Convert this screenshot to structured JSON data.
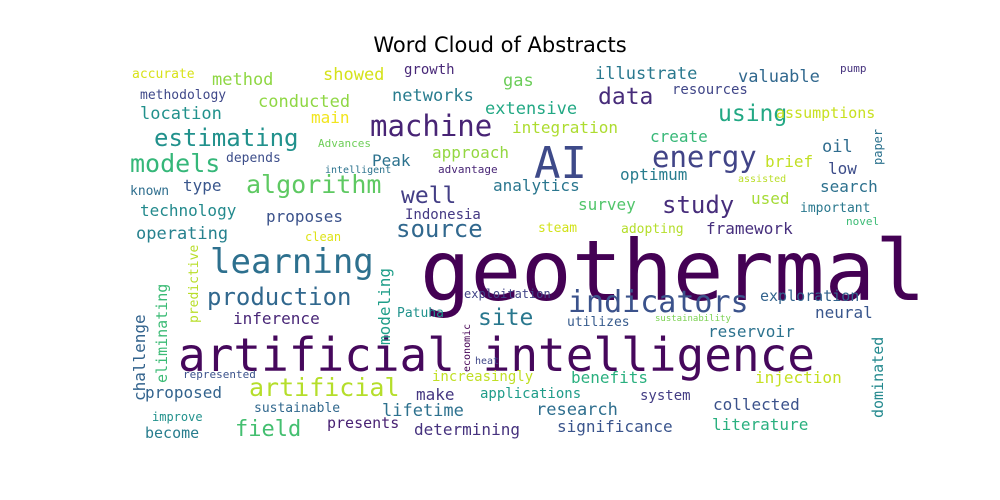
{
  "chart_data": {
    "type": "wordcloud",
    "title": "Word Cloud of Abstracts",
    "words": [
      {
        "text": "geothermal",
        "weight": 100,
        "color": "#440154",
        "vertical": false
      },
      {
        "text": "artificial intelligence",
        "weight": 72,
        "color": "#46085c",
        "vertical": false
      },
      {
        "text": "AI",
        "weight": 52,
        "color": "#3e4a89",
        "vertical": false
      },
      {
        "text": "learning",
        "weight": 38,
        "color": "#2d708e",
        "vertical": false
      },
      {
        "text": "indicators",
        "weight": 36,
        "color": "#3b528b",
        "vertical": false
      },
      {
        "text": "machine",
        "weight": 33,
        "color": "#482475",
        "vertical": false
      },
      {
        "text": "energy",
        "weight": 33,
        "color": "#414487",
        "vertical": false
      },
      {
        "text": "algorithm",
        "weight": 30,
        "color": "#5ec962",
        "vertical": false
      },
      {
        "text": "artificial",
        "weight": 30,
        "color": "#b5de2b",
        "vertical": false
      },
      {
        "text": "models",
        "weight": 28,
        "color": "#35b779",
        "vertical": false
      },
      {
        "text": "estimating",
        "weight": 27,
        "color": "#21918c",
        "vertical": false
      },
      {
        "text": "production",
        "weight": 26,
        "color": "#31688e",
        "vertical": false
      },
      {
        "text": "study",
        "weight": 26,
        "color": "#472d7b",
        "vertical": false
      },
      {
        "text": "source",
        "weight": 26,
        "color": "#31688e",
        "vertical": false
      },
      {
        "text": "site",
        "weight": 26,
        "color": "#2a788e",
        "vertical": false
      },
      {
        "text": "well",
        "weight": 25,
        "color": "#433e85",
        "vertical": false
      },
      {
        "text": "data",
        "weight": 25,
        "color": "#472c7a",
        "vertical": false
      },
      {
        "text": "using",
        "weight": 25,
        "color": "#22a884",
        "vertical": false
      },
      {
        "text": "field",
        "weight": 24,
        "color": "#44bf70",
        "vertical": false
      },
      {
        "text": "dominated",
        "weight": 11,
        "color": "#23898e",
        "vertical": true
      },
      {
        "text": "challenge",
        "weight": 15,
        "color": "#33638d",
        "vertical": true
      },
      {
        "text": "eliminating",
        "weight": 14,
        "color": "#3bbb75",
        "vertical": true
      },
      {
        "text": "modeling",
        "weight": 15,
        "color": "#1f9e89",
        "vertical": true
      },
      {
        "text": "predictive",
        "weight": 10,
        "color": "#b8de29",
        "vertical": true
      },
      {
        "text": "paper",
        "weight": 9,
        "color": "#2c728e",
        "vertical": true
      },
      {
        "text": "economic",
        "weight": 7,
        "color": "#440154",
        "vertical": true
      },
      {
        "text": "accurate",
        "weight": 10,
        "color": "#d8e219",
        "vertical": false
      },
      {
        "text": "method",
        "weight": 14,
        "color": "#8fd744",
        "vertical": false
      },
      {
        "text": "showed",
        "weight": 14,
        "color": "#d5e21a",
        "vertical": false
      },
      {
        "text": "growth",
        "weight": 11,
        "color": "#482878",
        "vertical": false
      },
      {
        "text": "gas",
        "weight": 14,
        "color": "#6ccd5a",
        "vertical": false
      },
      {
        "text": "illustrate",
        "weight": 15,
        "color": "#2a788e",
        "vertical": false
      },
      {
        "text": "valuable",
        "weight": 14,
        "color": "#31688e",
        "vertical": false
      },
      {
        "text": "pump",
        "weight": 9,
        "color": "#46337e",
        "vertical": false
      },
      {
        "text": "methodology",
        "weight": 10,
        "color": "#3f4889",
        "vertical": false
      },
      {
        "text": "conducted",
        "weight": 15,
        "color": "#8fd744",
        "vertical": false
      },
      {
        "text": "networks",
        "weight": 15,
        "color": "#287c8e",
        "vertical": false
      },
      {
        "text": "resources",
        "weight": 12,
        "color": "#404688",
        "vertical": false
      },
      {
        "text": "location",
        "weight": 15,
        "color": "#21918c",
        "vertical": false
      },
      {
        "text": "main",
        "weight": 13,
        "color": "#f1e51d",
        "vertical": false
      },
      {
        "text": "extensive",
        "weight": 15,
        "color": "#22a884",
        "vertical": false
      },
      {
        "text": "assumptions",
        "weight": 12,
        "color": "#c8e020",
        "vertical": false
      },
      {
        "text": "integration",
        "weight": 14,
        "color": "#addc30",
        "vertical": false
      },
      {
        "text": "create",
        "weight": 14,
        "color": "#37b878",
        "vertical": false
      },
      {
        "text": "Advances",
        "weight": 9,
        "color": "#6ece58",
        "vertical": false
      },
      {
        "text": "approach",
        "weight": 14,
        "color": "#93d741",
        "vertical": false
      },
      {
        "text": "oil",
        "weight": 15,
        "color": "#2f6c8e",
        "vertical": false
      },
      {
        "text": "depends",
        "weight": 11,
        "color": "#3d4e8a",
        "vertical": false
      },
      {
        "text": "Peak",
        "weight": 14,
        "color": "#2c728e",
        "vertical": false
      },
      {
        "text": "brief",
        "weight": 14,
        "color": "#c2df23",
        "vertical": false
      },
      {
        "text": "low",
        "weight": 14,
        "color": "#3d4d8a",
        "vertical": false
      },
      {
        "text": "advantage",
        "weight": 9,
        "color": "#482575",
        "vertical": false
      },
      {
        "text": "known",
        "weight": 11,
        "color": "#2e6e8e",
        "vertical": false
      },
      {
        "text": "intelligent",
        "weight": 8,
        "color": "#2c738e",
        "vertical": false
      },
      {
        "text": "type",
        "weight": 14,
        "color": "#39568c",
        "vertical": false
      },
      {
        "text": "analytics",
        "weight": 14,
        "color": "#2a768e",
        "vertical": false
      },
      {
        "text": "optimum",
        "weight": 14,
        "color": "#287d8e",
        "vertical": false
      },
      {
        "text": "assisted",
        "weight": 8,
        "color": "#bade28",
        "vertical": false
      },
      {
        "text": "search",
        "weight": 14,
        "color": "#2d718e",
        "vertical": false
      },
      {
        "text": "survey",
        "weight": 14,
        "color": "#51c56a",
        "vertical": false
      },
      {
        "text": "used",
        "weight": 14,
        "color": "#a5db36",
        "vertical": false
      },
      {
        "text": "important",
        "weight": 11,
        "color": "#2a788e",
        "vertical": false
      },
      {
        "text": "technology",
        "weight": 14,
        "color": "#238a8d",
        "vertical": false
      },
      {
        "text": "proposes",
        "weight": 14,
        "color": "#3b528b",
        "vertical": false
      },
      {
        "text": "Indonesia",
        "weight": 12,
        "color": "#443983",
        "vertical": false
      },
      {
        "text": "novel",
        "weight": 9,
        "color": "#3bbb75",
        "vertical": false
      },
      {
        "text": "operating",
        "weight": 15,
        "color": "#26818e",
        "vertical": false
      },
      {
        "text": "clean",
        "weight": 10,
        "color": "#dde318",
        "vertical": false
      },
      {
        "text": "steam",
        "weight": 11,
        "color": "#d2e21b",
        "vertical": false
      },
      {
        "text": "adopting",
        "weight": 11,
        "color": "#b5de2b",
        "vertical": false
      },
      {
        "text": "framework",
        "weight": 14,
        "color": "#472f7d",
        "vertical": false
      },
      {
        "text": "exploitation",
        "weight": 10,
        "color": "#414487",
        "vertical": false
      },
      {
        "text": "exploration",
        "weight": 13,
        "color": "#33638d",
        "vertical": false
      },
      {
        "text": "inference",
        "weight": 14,
        "color": "#482677",
        "vertical": false
      },
      {
        "text": "Patuha",
        "weight": 11,
        "color": "#20928c",
        "vertical": false
      },
      {
        "text": "neural",
        "weight": 14,
        "color": "#39568c",
        "vertical": false
      },
      {
        "text": "sustainability",
        "weight": 7,
        "color": "#7ad151",
        "vertical": false
      },
      {
        "text": "utilizes",
        "weight": 11,
        "color": "#375b8d",
        "vertical": false
      },
      {
        "text": "reservoir",
        "weight": 14,
        "color": "#2c728e",
        "vertical": false
      },
      {
        "text": "heat",
        "weight": 8,
        "color": "#3f4788",
        "vertical": false
      },
      {
        "text": "represented",
        "weight": 9,
        "color": "#3b528b",
        "vertical": false
      },
      {
        "text": "increasingly",
        "weight": 12,
        "color": "#c0df25",
        "vertical": false
      },
      {
        "text": "benefits",
        "weight": 14,
        "color": "#2ab07f",
        "vertical": false
      },
      {
        "text": "injection",
        "weight": 14,
        "color": "#c5e021",
        "vertical": false
      },
      {
        "text": "proposed",
        "weight": 15,
        "color": "#33638d",
        "vertical": false
      },
      {
        "text": "make",
        "weight": 14,
        "color": "#453781",
        "vertical": false
      },
      {
        "text": "applications",
        "weight": 12,
        "color": "#1e9c89",
        "vertical": false
      },
      {
        "text": "system",
        "weight": 12,
        "color": "#433d84",
        "vertical": false
      },
      {
        "text": "improve",
        "weight": 10,
        "color": "#21918c",
        "vertical": false
      },
      {
        "text": "sustainable",
        "weight": 11,
        "color": "#31688e",
        "vertical": false
      },
      {
        "text": "lifetime",
        "weight": 15,
        "color": "#2d718e",
        "vertical": false
      },
      {
        "text": "research",
        "weight": 15,
        "color": "#2e6e8e",
        "vertical": false
      },
      {
        "text": "collected",
        "weight": 14,
        "color": "#3b528b",
        "vertical": false
      },
      {
        "text": "become",
        "weight": 13,
        "color": "#287d8e",
        "vertical": false
      },
      {
        "text": "presents",
        "weight": 13,
        "color": "#482173",
        "vertical": false
      },
      {
        "text": "determining",
        "weight": 14,
        "color": "#46327e",
        "vertical": false
      },
      {
        "text": "significance",
        "weight": 14,
        "color": "#3a548c",
        "vertical": false
      },
      {
        "text": "literature",
        "weight": 14,
        "color": "#2ab07f",
        "vertical": false
      }
    ]
  }
}
